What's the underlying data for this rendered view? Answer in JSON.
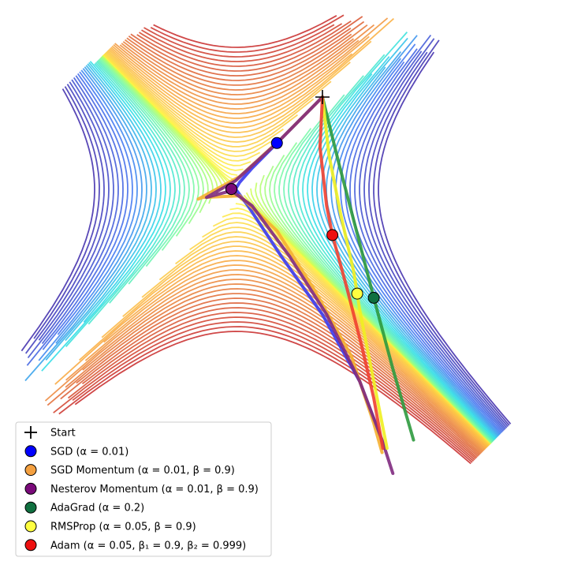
{
  "chart_data": {
    "type": "line",
    "title": "",
    "xlabel": "",
    "ylabel": "",
    "axes_visible": false,
    "surface": "contour lines of a saddle-shaped loss surface, colormap from blue (low) through cyan, green, yellow to red (high)",
    "start": {
      "label": "Start",
      "x": 0.0,
      "y": 0.0
    },
    "series": [
      {
        "name": "SGD ($\\alpha=0.01$)",
        "legend_text": "SGD (α = 0.01)",
        "color": "#0000ff",
        "line_color": "#3a3af0",
        "marker": {
          "x": -0.55,
          "y": -0.55
        },
        "path": [
          [
            0,
            0
          ],
          [
            -0.3,
            -0.3
          ],
          [
            -0.55,
            -0.55
          ],
          [
            -0.85,
            -0.85
          ],
          [
            -1.0,
            -1.02
          ],
          [
            -1.05,
            -1.1
          ],
          [
            -0.9,
            -1.3
          ],
          [
            -0.5,
            -1.9
          ],
          [
            0.0,
            -2.6
          ],
          [
            0.45,
            -3.4
          ],
          [
            0.75,
            -4.2
          ]
        ]
      },
      {
        "name": "SGD Momentum ($\\alpha=0.01, \\beta=0.9$)",
        "legend_text": "SGD Momentum (α = 0.01, β = 0.9)",
        "color": "#f4a040",
        "line_color": "#f5b030",
        "marker": {
          "x": -1.1,
          "y": -1.1
        },
        "path": [
          [
            0,
            0
          ],
          [
            -0.5,
            -0.5
          ],
          [
            -1.0,
            -0.95
          ],
          [
            -1.5,
            -1.22
          ],
          [
            -1.45,
            -1.2
          ],
          [
            -1.0,
            -1.18
          ],
          [
            -0.55,
            -1.6
          ],
          [
            -0.1,
            -2.3
          ],
          [
            0.35,
            -3.1
          ],
          [
            0.62,
            -3.9
          ],
          [
            0.72,
            -4.25
          ]
        ]
      },
      {
        "name": "Nesterov Momentum ($\\alpha=0.01, \\beta=0.9$)",
        "legend_text": "Nesterov Momentum (α = 0.01, β = 0.9)",
        "color": "#7a0a7a",
        "line_color": "#802a80",
        "marker": {
          "x": -1.1,
          "y": -1.1
        },
        "path": [
          [
            0,
            0
          ],
          [
            -0.55,
            -0.55
          ],
          [
            -1.05,
            -1.0
          ],
          [
            -1.4,
            -1.2
          ],
          [
            -1.1,
            -1.12
          ],
          [
            -0.85,
            -1.3
          ],
          [
            -0.4,
            -1.9
          ],
          [
            0.05,
            -2.6
          ],
          [
            0.45,
            -3.4
          ],
          [
            0.72,
            -4.1
          ],
          [
            0.85,
            -4.5
          ]
        ]
      },
      {
        "name": "AdaGrad ($\\alpha=0.2$)",
        "legend_text": "AdaGrad (α = 0.2)",
        "color": "#107040",
        "line_color": "#2e9a3e",
        "marker": {
          "x": 0.62,
          "y": -2.4
        },
        "path": [
          [
            0,
            0
          ],
          [
            0.2,
            -0.8
          ],
          [
            0.45,
            -1.75
          ],
          [
            0.62,
            -2.4
          ],
          [
            0.85,
            -3.25
          ],
          [
            1.1,
            -4.1
          ]
        ]
      },
      {
        "name": "RMSProp ($\\alpha=0.05, \\beta=0.9$)",
        "legend_text": "RMSProp (α = 0.05, β = 0.9)",
        "color": "#ffff40",
        "line_color": "#f0f020",
        "marker": {
          "x": 0.42,
          "y": -2.35
        },
        "path": [
          [
            0,
            0
          ],
          [
            0.08,
            -0.7
          ],
          [
            0.22,
            -1.4
          ],
          [
            0.38,
            -2.1
          ],
          [
            0.45,
            -2.55
          ],
          [
            0.55,
            -3.05
          ],
          [
            0.68,
            -3.7
          ],
          [
            0.78,
            -4.2
          ]
        ]
      },
      {
        "name": "Adam ($\\alpha=0.05, \\beta_1=0.9, \\beta_2=0.999$)",
        "legend_text": "Adam (α = 0.05, β₁ = 0.9, β₂ = 0.999)",
        "color": "#ee1010",
        "line_color": "#f04030",
        "marker": {
          "x": 0.12,
          "y": -1.65
        },
        "path": [
          [
            0,
            0
          ],
          [
            -0.03,
            -0.6
          ],
          [
            0.05,
            -1.3
          ],
          [
            0.12,
            -1.65
          ],
          [
            0.3,
            -2.3
          ],
          [
            0.48,
            -3.0
          ],
          [
            0.62,
            -3.6
          ],
          [
            0.73,
            -4.2
          ]
        ]
      }
    ],
    "legend_placement": "lower-left"
  }
}
